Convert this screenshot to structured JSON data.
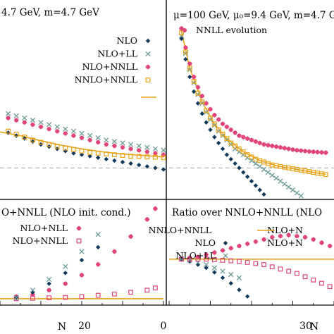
{
  "colors": {
    "nlo": "#12385a",
    "nlo_ll": "#6a9a96",
    "nlo_nnll": "#e0457a",
    "nnlo_nnll": "#e8a317",
    "axis": "#000000",
    "dash": "#999999"
  },
  "panels": [
    {
      "id": "top-left",
      "header": "4.7 GeV, m=4.7 GeV",
      "legend": [
        "NLO",
        "NLO+LL",
        "NLO+NNLL",
        "NNLO+NNLL"
      ],
      "series": [
        {
          "name": "NLO",
          "marker": "diamond",
          "x": [
            2,
            4,
            6,
            8,
            10,
            12,
            14,
            16,
            18,
            20,
            22,
            24,
            26,
            28,
            30,
            32,
            34,
            36,
            38,
            40
          ],
          "y": [
            0.24,
            0.22,
            0.2,
            0.18,
            0.16,
            0.145,
            0.13,
            0.115,
            0.1,
            0.09,
            0.08,
            0.07,
            0.06,
            0.05,
            0.04,
            0.03,
            0.02,
            0.01,
            0.0,
            -0.01
          ]
        },
        {
          "name": "NLO+LL",
          "marker": "x",
          "x": [
            2,
            4,
            6,
            8,
            10,
            12,
            14,
            16,
            18,
            20,
            22,
            24,
            26,
            28,
            30,
            32,
            34,
            36,
            38,
            40
          ],
          "y": [
            0.37,
            0.355,
            0.34,
            0.325,
            0.31,
            0.295,
            0.28,
            0.265,
            0.25,
            0.235,
            0.22,
            0.205,
            0.19,
            0.18,
            0.17,
            0.16,
            0.15,
            0.14,
            0.13,
            0.12
          ]
        },
        {
          "name": "NLO+NNLL",
          "marker": "star",
          "x": [
            2,
            4,
            6,
            8,
            10,
            12,
            14,
            16,
            18,
            20,
            22,
            24,
            26,
            28,
            30,
            32,
            34,
            36,
            38,
            40
          ],
          "y": [
            0.34,
            0.325,
            0.31,
            0.295,
            0.28,
            0.265,
            0.25,
            0.235,
            0.22,
            0.205,
            0.19,
            0.175,
            0.16,
            0.15,
            0.14,
            0.13,
            0.12,
            0.11,
            0.1,
            0.09
          ]
        },
        {
          "name": "NNLO+NNLL",
          "marker": "square",
          "x": [
            2,
            4,
            6,
            8,
            10,
            12,
            14,
            16,
            18,
            20,
            22,
            24,
            26,
            28,
            30,
            32,
            34,
            36,
            38,
            40
          ],
          "y": [
            0.25,
            0.23,
            0.21,
            0.19,
            0.175,
            0.16,
            0.145,
            0.135,
            0.125,
            0.115,
            0.105,
            0.1,
            0.095,
            0.09,
            0.085,
            0.08,
            0.078,
            0.075,
            0.073,
            0.07
          ]
        }
      ],
      "line": {
        "name": "NNLO+NNLL",
        "x": [
          0,
          5,
          10,
          15,
          20,
          25,
          30,
          35,
          40
        ],
        "y": [
          0.245,
          0.22,
          0.185,
          0.155,
          0.13,
          0.11,
          0.095,
          0.085,
          0.075
        ]
      }
    },
    {
      "id": "top-right",
      "header": "μ=100 GeV, μ₀=9.4 GeV, m=4.7 G",
      "legend": [
        "NNLL evolution"
      ],
      "series": [
        {
          "name": "NNLL evolution",
          "marker": "star",
          "x": [
            3,
            4,
            5,
            6,
            7,
            8,
            9,
            10,
            11,
            12,
            13,
            14,
            15,
            16,
            17,
            18,
            19,
            20,
            21,
            22,
            23,
            24,
            25,
            26,
            27,
            28,
            29,
            30,
            31,
            32,
            33,
            34,
            35,
            36,
            37,
            38
          ],
          "y": [
            0.95,
            0.82,
            0.71,
            0.62,
            0.55,
            0.49,
            0.44,
            0.4,
            0.36,
            0.33,
            0.3,
            0.28,
            0.26,
            0.24,
            0.22,
            0.21,
            0.2,
            0.19,
            0.18,
            0.17,
            0.16,
            0.155,
            0.15,
            0.145,
            0.14,
            0.135,
            0.13,
            0.125,
            0.12,
            0.118,
            0.115,
            0.112,
            0.11,
            0.108,
            0.106,
            0.104
          ]
        },
        {
          "name": "NLO",
          "marker": "diamond",
          "x": [
            3,
            4,
            5,
            6,
            7,
            8,
            9,
            10,
            11,
            12,
            13,
            14,
            15,
            16,
            17,
            18,
            19,
            20,
            21,
            22,
            23,
            24,
            25,
            26,
            27,
            28,
            29,
            30,
            31,
            32,
            33,
            34,
            35,
            36,
            37,
            38
          ],
          "y": [
            0.88,
            0.74,
            0.62,
            0.52,
            0.44,
            0.37,
            0.31,
            0.26,
            0.21,
            0.17,
            0.13,
            0.09,
            0.06,
            0.03,
            0.0,
            -0.03,
            -0.06,
            -0.09,
            -0.12,
            -0.15,
            -0.18,
            -0.21,
            -0.24,
            -0.27,
            -0.3,
            -0.33,
            -0.36,
            -0.39,
            -0.42,
            -0.45,
            -0.48,
            -0.51,
            -0.54,
            -0.57,
            -0.6,
            -0.63
          ]
        },
        {
          "name": "NLO+LL",
          "marker": "x",
          "x": [
            3,
            4,
            5,
            6,
            7,
            8,
            9,
            10,
            11,
            12,
            13,
            14,
            15,
            16,
            17,
            18,
            19,
            20,
            21,
            22,
            23,
            24,
            25,
            26,
            27,
            28,
            29,
            30,
            31,
            32,
            33,
            34,
            35,
            36,
            37,
            38
          ],
          "y": [
            0.9,
            0.78,
            0.67,
            0.58,
            0.5,
            0.44,
            0.38,
            0.33,
            0.29,
            0.25,
            0.22,
            0.19,
            0.16,
            0.13,
            0.11,
            0.09,
            0.07,
            0.05,
            0.03,
            0.01,
            -0.01,
            -0.03,
            -0.05,
            -0.07,
            -0.09,
            -0.11,
            -0.13,
            -0.15,
            -0.17,
            -0.19,
            -0.21,
            -0.23,
            -0.25,
            -0.27,
            -0.29,
            -0.31
          ]
        },
        {
          "name": "NNLO+NNLL",
          "marker": "square",
          "x": [
            3,
            4,
            5,
            6,
            7,
            8,
            9,
            10,
            11,
            12,
            13,
            14,
            15,
            16,
            17,
            18,
            19,
            20,
            21,
            22,
            23,
            24,
            25,
            26,
            27,
            28,
            29,
            30,
            31,
            32,
            33,
            34,
            35,
            36,
            37,
            38
          ],
          "y": [
            0.92,
            0.79,
            0.68,
            0.59,
            0.51,
            0.45,
            0.39,
            0.34,
            0.3,
            0.26,
            0.23,
            0.2,
            0.17,
            0.15,
            0.13,
            0.11,
            0.09,
            0.075,
            0.06,
            0.05,
            0.04,
            0.03,
            0.02,
            0.015,
            0.01,
            0.005,
            0.0,
            -0.005,
            -0.01,
            -0.015,
            -0.02,
            -0.025,
            -0.03,
            -0.035,
            -0.04,
            -0.045
          ]
        }
      ],
      "line": {
        "name": "NNLO+NNLL",
        "x": [
          3,
          5,
          8,
          11,
          14,
          18,
          22,
          26,
          30,
          34,
          38
        ],
        "y": [
          0.93,
          0.68,
          0.45,
          0.3,
          0.2,
          0.11,
          0.05,
          0.015,
          -0.005,
          -0.025,
          -0.045
        ]
      }
    },
    {
      "id": "bottom-left",
      "header": "O+NNLL (NLO init. cond.)",
      "legend": [
        "NLO+NLL",
        "NLO+NNLL"
      ],
      "tick_labels": [
        "20",
        "0"
      ],
      "xlabel": "N",
      "series": [
        {
          "name": "NLO+NLL",
          "marker": "star",
          "x": [
            4,
            8,
            12,
            16,
            20,
            24,
            28,
            32,
            36,
            38
          ],
          "y": [
            1.05,
            1.1,
            1.2,
            1.35,
            1.55,
            1.8,
            2.1,
            2.45,
            2.85,
            3.1
          ]
        },
        {
          "name": "NLO+NNLL",
          "marker": "square",
          "x": [
            4,
            8,
            12,
            16,
            20,
            24,
            28,
            32,
            36,
            38
          ],
          "y": [
            1.0,
            1.01,
            1.02,
            1.03,
            1.05,
            1.08,
            1.11,
            1.15,
            1.2,
            1.25
          ]
        },
        {
          "name": "NLO",
          "marker": "diamond",
          "x": [
            4,
            8,
            12,
            16,
            20,
            24
          ],
          "y": [
            1.02,
            1.15,
            1.35,
            1.6,
            1.9,
            2.2
          ]
        },
        {
          "name": "NLO+LL",
          "marker": "x",
          "x": [
            4,
            8,
            12,
            16,
            20,
            24
          ],
          "y": [
            1.03,
            1.2,
            1.45,
            1.75,
            2.1,
            2.5
          ]
        }
      ],
      "line": {
        "name": "NNLO+NNLL",
        "x": [
          0,
          40
        ],
        "y": [
          1.0,
          1.0
        ]
      }
    },
    {
      "id": "bottom-right",
      "header": "Ratio over NNLO+NNLL (NLO",
      "legend": [
        "NNLO+NNLL",
        "NLO",
        "NLO+LL",
        "NLO+N",
        "NLO+N"
      ],
      "tick_labels": [
        "30"
      ],
      "xlabel": "N",
      "series": [
        {
          "name": "NLO+NNLL",
          "marker": "star",
          "x": [
            3,
            5,
            7,
            9,
            11,
            13,
            15,
            17,
            19,
            21,
            23,
            25,
            27,
            29,
            31,
            33,
            35,
            37,
            39
          ],
          "y": [
            1.0,
            1.01,
            1.02,
            1.04,
            1.06,
            1.08,
            1.1,
            1.12,
            1.14,
            1.16,
            1.18,
            1.2,
            1.21,
            1.22,
            1.21,
            1.2,
            1.18,
            1.15,
            1.12
          ]
        },
        {
          "name": "NLO",
          "marker": "diamond",
          "x": [
            3,
            5,
            7,
            9,
            11,
            13,
            15,
            17,
            19
          ],
          "y": [
            1.0,
            0.98,
            0.95,
            0.92,
            0.88,
            0.83,
            0.78,
            0.72,
            0.66
          ]
        },
        {
          "name": "NLO+LL",
          "marker": "x",
          "x": [
            3,
            5,
            7,
            9,
            11,
            13,
            15,
            17
          ],
          "y": [
            1.0,
            0.99,
            0.97,
            0.95,
            0.92,
            0.89,
            0.86,
            0.83
          ]
        },
        {
          "name": "NLO+NNLL",
          "marker": "square",
          "x": [
            3,
            5,
            7,
            9,
            11,
            13,
            15,
            17,
            19,
            21,
            23,
            25,
            27,
            29,
            31,
            33,
            35,
            37,
            39
          ],
          "y": [
            1.0,
            1.0,
            1.0,
            1.0,
            0.995,
            0.99,
            0.985,
            0.98,
            0.97,
            0.96,
            0.95,
            0.93,
            0.91,
            0.89,
            0.87,
            0.84,
            0.81,
            0.78,
            0.75
          ]
        }
      ],
      "line": {
        "name": "NNLO+NNLL",
        "x": [
          0,
          40
        ],
        "y": [
          1.0,
          1.0
        ]
      }
    }
  ]
}
